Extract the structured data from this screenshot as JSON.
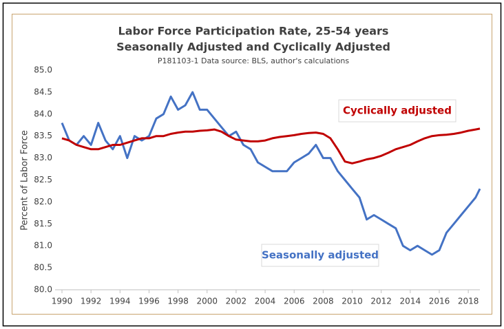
{
  "chart_data": {
    "type": "line",
    "title": "Labor Force Participation Rate, 25-54 years",
    "subtitle": "Seasonally Adjusted and Cyclically Adjusted",
    "source": "P181103-1 Data source: BLS, author's calculations",
    "y_label": "Percent of Labor Force",
    "x": [
      1990,
      1990.5,
      1991,
      1991.5,
      1992,
      1992.5,
      1993,
      1993.5,
      1994,
      1994.5,
      1995,
      1995.5,
      1996,
      1996.5,
      1997,
      1997.5,
      1998,
      1998.5,
      1999,
      1999.5,
      2000,
      2000.5,
      2001,
      2001.5,
      2002,
      2002.5,
      2003,
      2003.5,
      2004,
      2004.5,
      2005,
      2005.5,
      2006,
      2006.5,
      2007,
      2007.5,
      2008,
      2008.5,
      2009,
      2009.5,
      2010,
      2010.5,
      2011,
      2011.5,
      2012,
      2012.5,
      2013,
      2013.5,
      2014,
      2014.5,
      2015,
      2015.5,
      2016,
      2016.5,
      2017,
      2017.5,
      2018,
      2018.5,
      2018.8
    ],
    "series": [
      {
        "name": "Seasonally adjusted",
        "color": "#4472c4",
        "values": [
          83.8,
          83.4,
          83.3,
          83.5,
          83.3,
          83.8,
          83.4,
          83.2,
          83.5,
          83.0,
          83.5,
          83.4,
          83.5,
          83.9,
          84.0,
          84.4,
          84.1,
          84.2,
          84.5,
          84.1,
          84.1,
          83.9,
          83.7,
          83.5,
          83.6,
          83.3,
          83.2,
          82.9,
          82.8,
          82.7,
          82.7,
          82.7,
          82.9,
          83.0,
          83.1,
          83.3,
          83.0,
          83.0,
          82.7,
          82.5,
          82.3,
          82.1,
          81.6,
          81.7,
          81.6,
          81.5,
          81.4,
          81.0,
          80.9,
          81.0,
          80.9,
          80.8,
          80.9,
          81.3,
          81.5,
          81.7,
          81.9,
          82.1,
          82.3
        ]
      },
      {
        "name": "Cyclically adjusted",
        "color": "#c00000",
        "values": [
          83.45,
          83.4,
          83.3,
          83.25,
          83.2,
          83.2,
          83.25,
          83.3,
          83.3,
          83.35,
          83.4,
          83.45,
          83.45,
          83.5,
          83.5,
          83.55,
          83.58,
          83.6,
          83.6,
          83.62,
          83.63,
          83.65,
          83.6,
          83.5,
          83.42,
          83.4,
          83.38,
          83.38,
          83.4,
          83.45,
          83.48,
          83.5,
          83.52,
          83.55,
          83.57,
          83.58,
          83.55,
          83.45,
          83.2,
          82.92,
          82.88,
          82.92,
          82.97,
          83.0,
          83.05,
          83.12,
          83.2,
          83.25,
          83.3,
          83.38,
          83.45,
          83.5,
          83.52,
          83.53,
          83.55,
          83.58,
          83.62,
          83.65,
          83.67
        ]
      }
    ],
    "xlim": [
      1990,
      2018.8
    ],
    "xticks": [
      1990,
      1992,
      1994,
      1996,
      1998,
      2000,
      2002,
      2004,
      2006,
      2008,
      2010,
      2012,
      2014,
      2016,
      2018
    ],
    "ylim": [
      80,
      85
    ],
    "yticks": [
      {
        "value": 80,
        "label": "80.0"
      },
      {
        "value": 80.5,
        "label": "80.5"
      },
      {
        "value": 81,
        "label": "81.0"
      },
      {
        "value": 81.5,
        "label": "81.5"
      },
      {
        "value": 82,
        "label": "82.0"
      },
      {
        "value": 82.5,
        "label": "82.5"
      },
      {
        "value": 83,
        "label": "83.0"
      },
      {
        "value": 83.5,
        "label": "83.5"
      },
      {
        "value": 84,
        "label": "84.0"
      },
      {
        "value": 84.5,
        "label": "84.5"
      },
      {
        "value": 85,
        "label": "85.0"
      }
    ],
    "grid": false
  }
}
